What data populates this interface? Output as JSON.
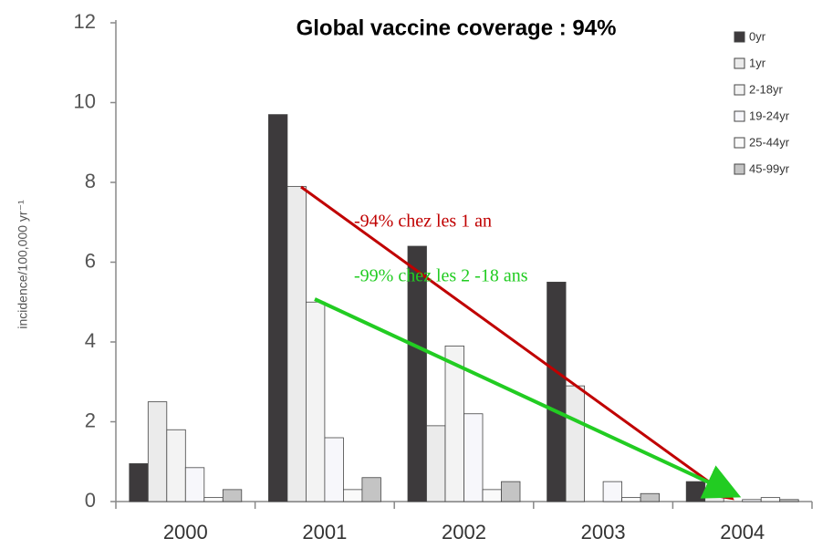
{
  "chart_data": {
    "type": "bar",
    "title": "Global vaccine coverage : 94%",
    "y_label": "incidence/100,000 yr⁻¹",
    "categories": [
      "2000",
      "2001",
      "2002",
      "2003",
      "2004"
    ],
    "series": [
      {
        "name": "0yr",
        "color": "#3d3a3c",
        "values": [
          0.95,
          9.7,
          6.4,
          5.5,
          0.5
        ]
      },
      {
        "name": "1yr",
        "color": "#ebebeb",
        "values": [
          2.5,
          7.9,
          1.9,
          2.9,
          0.5
        ]
      },
      {
        "name": "2-18yr",
        "color": "#f3f3f3",
        "values": [
          1.8,
          5.0,
          3.9,
          0,
          0
        ]
      },
      {
        "name": "19-24yr",
        "color": "#f7f7fb",
        "values": [
          0.85,
          1.6,
          2.2,
          0.5,
          0.05
        ]
      },
      {
        "name": "25-44yr",
        "color": "#fafafa",
        "values": [
          0.1,
          0.3,
          0.3,
          0.1,
          0.1
        ]
      },
      {
        "name": "45-99yr",
        "color": "#c4c4c4",
        "values": [
          0.3,
          0.6,
          0.5,
          0.2,
          0.05
        ]
      }
    ],
    "ylim": [
      0,
      12
    ],
    "yticks": [
      0,
      2,
      4,
      6,
      8,
      10,
      12
    ],
    "annotations": [
      "-94% chez les 1 an",
      "-99% chez les 2 -18 ans"
    ],
    "legend": "right"
  }
}
